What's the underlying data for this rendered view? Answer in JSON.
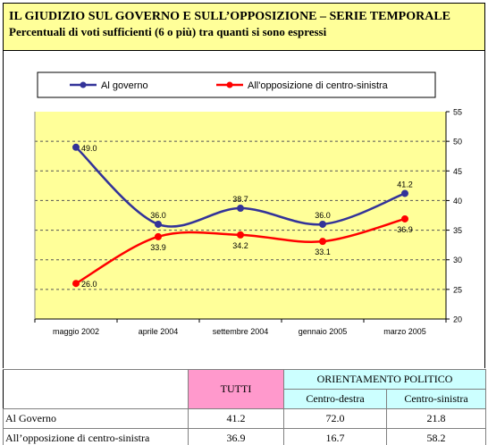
{
  "header": {
    "title": "IL GIUDIZIO SUL GOVERNO E SULL’OPPOSIZIONE – SERIE TEMPORALE",
    "subtitle": "Percentuali di voti sufficienti (6 o più) tra quanti si sono espressi"
  },
  "colors": {
    "background": "#ffff99",
    "governo": "#333399",
    "opposizione": "#ff0000",
    "tutti": "#ff99cc",
    "orientamento": "#ccffff"
  },
  "chart_data": {
    "type": "line",
    "categories": [
      "maggio 2002",
      "aprile 2004",
      "settembre 2004",
      "gennaio 2005",
      "marzo 2005"
    ],
    "series": [
      {
        "name": "Al governo",
        "color": "#333399",
        "values": [
          49.0,
          36.0,
          38.7,
          36.0,
          41.2
        ],
        "labels": [
          "49.0",
          "36.0",
          "38.7",
          "36.0",
          "41.2"
        ]
      },
      {
        "name": "All'opposizione di centro-sinistra",
        "color": "#ff0000",
        "values": [
          26.0,
          33.9,
          34.2,
          33.1,
          36.9
        ],
        "labels": [
          "26.0",
          "33.9",
          "34.2",
          "33.1",
          "36.9"
        ]
      }
    ],
    "ylim": [
      20,
      55
    ],
    "yticks": [
      "20",
      "25",
      "30",
      "35",
      "40",
      "45",
      "50",
      "55"
    ],
    "y_axis_position": "right",
    "grid": true,
    "legend_position": "top"
  },
  "table": {
    "col_tutti": "TUTTI",
    "col_orientamento": "ORIENTAMENTO POLITICO",
    "col_cd": "Centro-destra",
    "col_cs": "Centro-sinistra",
    "rows": [
      {
        "label": "Al Governo",
        "tutti": "41.2",
        "cd": "72.0",
        "cs": "21.8"
      },
      {
        "label": "All’opposizione di centro-sinistra",
        "tutti": "36.9",
        "cd": "16.7",
        "cs": "58.2"
      }
    ]
  }
}
